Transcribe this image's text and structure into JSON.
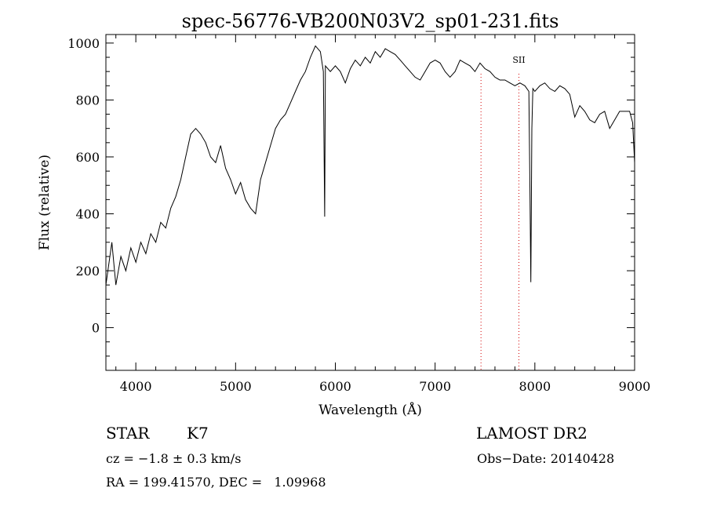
{
  "chart_data": {
    "type": "line",
    "title": "spec-56776-VB200N03V2_sp01-231.fits",
    "xlabel": "Wavelength (Å)",
    "ylabel": "Flux (relative)",
    "xlim": [
      3700,
      9000
    ],
    "ylim": [
      -150,
      1030
    ],
    "xticks": [
      4000,
      5000,
      6000,
      7000,
      8000,
      9000
    ],
    "yticks": [
      0,
      200,
      400,
      600,
      800,
      1000
    ],
    "grid": false,
    "line_color": "#000000",
    "series": [
      {
        "x": [
          3700,
          3760,
          3800,
          3850,
          3900,
          3950,
          4000,
          4050,
          4100,
          4150,
          4200,
          4250,
          4300,
          4350,
          4400,
          4450,
          4500,
          4550,
          4600,
          4650,
          4700,
          4750,
          4800,
          4850,
          4900,
          4950,
          5000,
          5050,
          5100,
          5150,
          5200,
          5250,
          5300,
          5350,
          5400,
          5450,
          5500,
          5550,
          5600,
          5650,
          5700,
          5750,
          5800,
          5850,
          5880,
          5893,
          5900,
          5950,
          6000,
          6050,
          6100,
          6150,
          6200,
          6250,
          6300,
          6350,
          6400,
          6450,
          6500,
          6550,
          6600,
          6650,
          6700,
          6750,
          6800,
          6850,
          6900,
          6950,
          7000,
          7050,
          7100,
          7150,
          7200,
          7250,
          7300,
          7350,
          7400,
          7450,
          7500,
          7550,
          7600,
          7650,
          7700,
          7750,
          7800,
          7850,
          7900,
          7940,
          7950,
          7960,
          7970,
          7980,
          8000,
          8050,
          8100,
          8150,
          8200,
          8250,
          8300,
          8350,
          8400,
          8450,
          8500,
          8550,
          8600,
          8650,
          8700,
          8750,
          8800,
          8850,
          8900,
          8950,
          8980,
          9000
        ],
        "values": [
          150,
          300,
          150,
          250,
          200,
          280,
          230,
          300,
          260,
          330,
          300,
          370,
          350,
          420,
          460,
          520,
          600,
          680,
          700,
          680,
          650,
          600,
          580,
          640,
          560,
          520,
          470,
          510,
          450,
          420,
          400,
          520,
          580,
          640,
          700,
          730,
          750,
          790,
          830,
          870,
          900,
          950,
          990,
          970,
          900,
          390,
          920,
          900,
          920,
          900,
          860,
          910,
          940,
          920,
          950,
          930,
          970,
          950,
          980,
          970,
          960,
          940,
          920,
          900,
          880,
          870,
          900,
          930,
          940,
          930,
          900,
          880,
          900,
          940,
          930,
          920,
          900,
          930,
          910,
          900,
          880,
          870,
          870,
          860,
          850,
          860,
          850,
          830,
          500,
          160,
          700,
          840,
          830,
          850,
          860,
          840,
          830,
          850,
          840,
          820,
          740,
          780,
          760,
          730,
          720,
          750,
          760,
          700,
          730,
          760,
          760,
          760,
          720,
          580
        ]
      }
    ],
    "annotations": [
      {
        "label": "",
        "x": 7460,
        "style": "dotted-red"
      },
      {
        "label": "SII",
        "x": 7840,
        "style": "dotted-red"
      }
    ]
  },
  "info": {
    "class_label": "STAR",
    "subclass": "K7",
    "survey": "LAMOST DR2",
    "redshift": "cz = −1.8 ± 0.3 km/s",
    "obs_date": "Obs−Date: 20140428",
    "coords": "RA = 199.41570, DEC =   1.09968"
  }
}
